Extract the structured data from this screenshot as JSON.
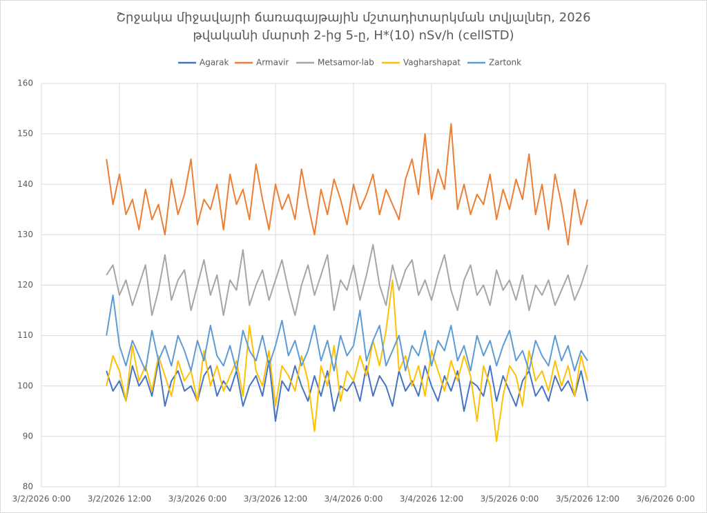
{
  "chart_data": {
    "type": "line",
    "title": [
      "Շրջակա միջավայրի ճառագայթային մշտադիտարկման տվյալներ, 2026",
      "թվականի մարտի 2-ից 5-ը, H*(10) nSv/h (cellSTD)"
    ],
    "x": [
      "3/2/2026 10:00",
      "3/2/2026 11:00",
      "3/2/2026 12:00",
      "3/2/2026 13:00",
      "3/2/2026 14:00",
      "3/2/2026 15:00",
      "3/2/2026 16:00",
      "3/2/2026 17:00",
      "3/2/2026 18:00",
      "3/2/2026 19:00",
      "3/2/2026 20:00",
      "3/2/2026 21:00",
      "3/2/2026 22:00",
      "3/2/2026 23:00",
      "3/3/2026 0:00",
      "3/3/2026 1:00",
      "3/3/2026 2:00",
      "3/3/2026 3:00",
      "3/3/2026 4:00",
      "3/3/2026 5:00",
      "3/3/2026 6:00",
      "3/3/2026 7:00",
      "3/3/2026 8:00",
      "3/3/2026 9:00",
      "3/3/2026 10:00",
      "3/3/2026 11:00",
      "3/3/2026 12:00",
      "3/3/2026 13:00",
      "3/3/2026 14:00",
      "3/3/2026 15:00",
      "3/3/2026 16:00",
      "3/3/2026 17:00",
      "3/3/2026 18:00",
      "3/3/2026 19:00",
      "3/3/2026 20:00",
      "3/3/2026 21:00",
      "3/3/2026 22:00",
      "3/3/2026 23:00",
      "3/4/2026 0:00",
      "3/4/2026 1:00",
      "3/4/2026 2:00",
      "3/4/2026 3:00",
      "3/4/2026 4:00",
      "3/4/2026 5:00",
      "3/4/2026 6:00",
      "3/4/2026 7:00",
      "3/4/2026 8:00",
      "3/4/2026 9:00",
      "3/4/2026 10:00",
      "3/4/2026 11:00",
      "3/4/2026 12:00",
      "3/4/2026 13:00",
      "3/4/2026 14:00",
      "3/4/2026 15:00",
      "3/4/2026 16:00",
      "3/4/2026 17:00",
      "3/4/2026 18:00",
      "3/4/2026 19:00",
      "3/4/2026 20:00",
      "3/4/2026 21:00",
      "3/4/2026 22:00",
      "3/4/2026 23:00",
      "3/5/2026 0:00",
      "3/5/2026 1:00",
      "3/5/2026 2:00",
      "3/5/2026 3:00",
      "3/5/2026 4:00",
      "3/5/2026 5:00",
      "3/5/2026 6:00",
      "3/5/2026 7:00",
      "3/5/2026 8:00",
      "3/5/2026 9:00",
      "3/5/2026 10:00",
      "3/5/2026 11:00",
      "3/5/2026 12:00"
    ],
    "series": [
      {
        "name": "Agarak",
        "color": "#4472c4",
        "values": [
          103,
          99,
          101,
          97,
          104,
          100,
          102,
          98,
          105,
          96,
          101,
          103,
          99,
          100,
          97,
          102,
          104,
          98,
          101,
          99,
          103,
          96,
          100,
          102,
          98,
          105,
          93,
          101,
          99,
          104,
          100,
          97,
          102,
          98,
          103,
          95,
          100,
          99,
          101,
          97,
          104,
          98,
          102,
          100,
          96,
          103,
          99,
          101,
          98,
          104,
          100,
          97,
          102,
          99,
          103,
          95,
          101,
          100,
          98,
          104,
          97,
          102,
          99,
          96,
          101,
          103,
          98,
          100,
          97,
          102,
          99,
          101,
          98,
          103,
          97
        ]
      },
      {
        "name": "Armavir",
        "color": "#ed7d31",
        "values": [
          145,
          136,
          142,
          134,
          137,
          131,
          139,
          133,
          136,
          130,
          141,
          134,
          138,
          145,
          132,
          137,
          135,
          140,
          131,
          142,
          136,
          139,
          133,
          144,
          137,
          131,
          140,
          135,
          138,
          133,
          143,
          136,
          130,
          139,
          134,
          141,
          137,
          132,
          140,
          135,
          138,
          142,
          134,
          139,
          136,
          133,
          141,
          145,
          138,
          150,
          137,
          143,
          139,
          152,
          135,
          140,
          134,
          138,
          136,
          142,
          133,
          139,
          135,
          141,
          137,
          146,
          134,
          140,
          131,
          142,
          136,
          128,
          139,
          132,
          137
        ]
      },
      {
        "name": "Metsamor-lab",
        "color": "#a5a5a5",
        "values": [
          122,
          124,
          118,
          121,
          116,
          120,
          124,
          114,
          119,
          126,
          117,
          121,
          123,
          115,
          120,
          125,
          118,
          122,
          114,
          121,
          119,
          127,
          116,
          120,
          123,
          117,
          121,
          125,
          119,
          114,
          120,
          124,
          118,
          122,
          126,
          115,
          121,
          119,
          124,
          117,
          122,
          128,
          120,
          116,
          124,
          119,
          123,
          125,
          118,
          121,
          117,
          122,
          126,
          119,
          115,
          121,
          124,
          118,
          120,
          116,
          123,
          119,
          121,
          117,
          122,
          115,
          120,
          118,
          121,
          116,
          119,
          122,
          117,
          120,
          124
        ]
      },
      {
        "name": "Vagharshapat",
        "color": "#ffc000",
        "values": [
          100,
          106,
          103,
          97,
          108,
          101,
          104,
          99,
          106,
          102,
          98,
          105,
          101,
          103,
          97,
          107,
          100,
          104,
          99,
          102,
          105,
          98,
          112,
          103,
          100,
          107,
          96,
          104,
          102,
          99,
          106,
          101,
          91,
          104,
          100,
          108,
          97,
          103,
          101,
          106,
          102,
          109,
          104,
          111,
          121,
          103,
          106,
          100,
          104,
          98,
          107,
          103,
          99,
          105,
          101,
          106,
          102,
          93,
          104,
          100,
          89,
          98,
          104,
          102,
          96,
          107,
          101,
          103,
          99,
          105,
          100,
          104,
          98,
          106,
          101
        ]
      },
      {
        "name": "Zartonk",
        "color": "#5b9bd5",
        "values": [
          110,
          118,
          108,
          104,
          109,
          106,
          103,
          111,
          105,
          108,
          104,
          110,
          107,
          103,
          109,
          105,
          112,
          106,
          104,
          108,
          103,
          111,
          107,
          105,
          110,
          104,
          108,
          113,
          106,
          109,
          104,
          107,
          112,
          105,
          109,
          103,
          110,
          106,
          108,
          115,
          105,
          109,
          112,
          104,
          107,
          110,
          103,
          108,
          106,
          111,
          104,
          109,
          107,
          112,
          105,
          108,
          103,
          110,
          106,
          109,
          104,
          108,
          111,
          105,
          107,
          103,
          109,
          106,
          104,
          110,
          105,
          108,
          103,
          107,
          105
        ]
      }
    ],
    "xlim": [
      "3/2/2026 0:00",
      "3/6/2026 0:00"
    ],
    "xticks": [
      "3/2/2026 0:00",
      "3/2/2026 12:00",
      "3/3/2026 0:00",
      "3/3/2026 12:00",
      "3/4/2026 0:00",
      "3/4/2026 12:00",
      "3/5/2026 0:00",
      "3/5/2026 12:00",
      "3/6/2026 0:00"
    ],
    "ylim": [
      80,
      160
    ],
    "yticks": [
      80,
      90,
      100,
      110,
      120,
      130,
      140,
      150,
      160
    ],
    "grid": true,
    "legend": "top"
  }
}
